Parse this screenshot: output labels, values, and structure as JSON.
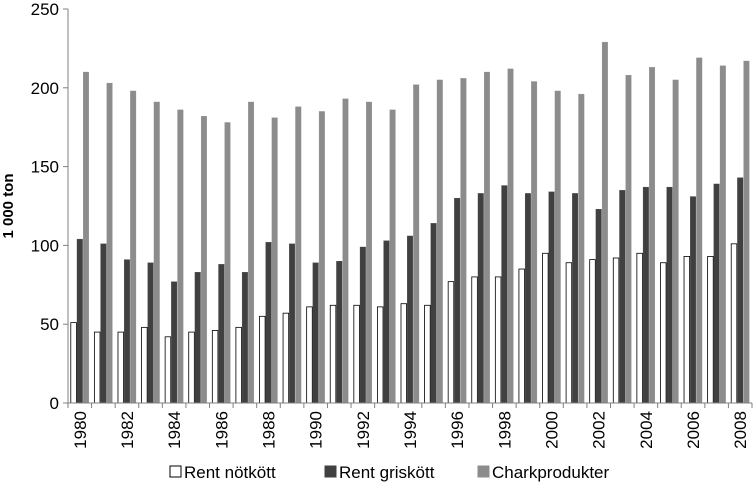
{
  "chart_data": {
    "type": "bar",
    "title": "",
    "ylabel": "1 000 ton",
    "xlabel": "",
    "ylim": [
      0,
      250
    ],
    "yticks": [
      0,
      50,
      100,
      150,
      200,
      250
    ],
    "grid": false,
    "legend_position": "bottom",
    "categories": [
      "1980",
      "1981",
      "1982",
      "1983",
      "1984",
      "1985",
      "1986",
      "1987",
      "1988",
      "1989",
      "1990",
      "1991",
      "1992",
      "1993",
      "1994",
      "1995",
      "1996",
      "1997",
      "1998",
      "1999",
      "2000",
      "2001",
      "2002",
      "2003",
      "2004",
      "2005",
      "2006",
      "2007",
      "2008"
    ],
    "x_tick_labels": [
      "1980",
      "1982",
      "1984",
      "1986",
      "1988",
      "1990",
      "1992",
      "1994",
      "1996",
      "1998",
      "2000",
      "2002",
      "2004",
      "2006",
      "2008"
    ],
    "series": [
      {
        "name": "Rent nötkött",
        "color": "#ffffff",
        "stroke": "#000000",
        "values": [
          51,
          45,
          45,
          48,
          42,
          45,
          46,
          48,
          55,
          57,
          61,
          62,
          62,
          61,
          63,
          62,
          77,
          80,
          80,
          85,
          95,
          89,
          91,
          92,
          95,
          89,
          93,
          93,
          101
        ]
      },
      {
        "name": "Rent griskött",
        "color": "#404040",
        "stroke": "#404040",
        "values": [
          104,
          101,
          91,
          89,
          77,
          83,
          88,
          83,
          102,
          101,
          89,
          90,
          99,
          103,
          106,
          114,
          130,
          133,
          138,
          133,
          134,
          133,
          123,
          135,
          137,
          137,
          131,
          139,
          143
        ]
      },
      {
        "name": "Charkprodukter",
        "color": "#8c8c8c",
        "stroke": "#8c8c8c",
        "values": [
          210,
          203,
          198,
          191,
          186,
          182,
          178,
          191,
          181,
          188,
          185,
          193,
          191,
          186,
          202,
          205,
          206,
          210,
          212,
          204,
          198,
          196,
          229,
          208,
          213,
          205,
          219,
          214,
          217
        ]
      }
    ]
  }
}
